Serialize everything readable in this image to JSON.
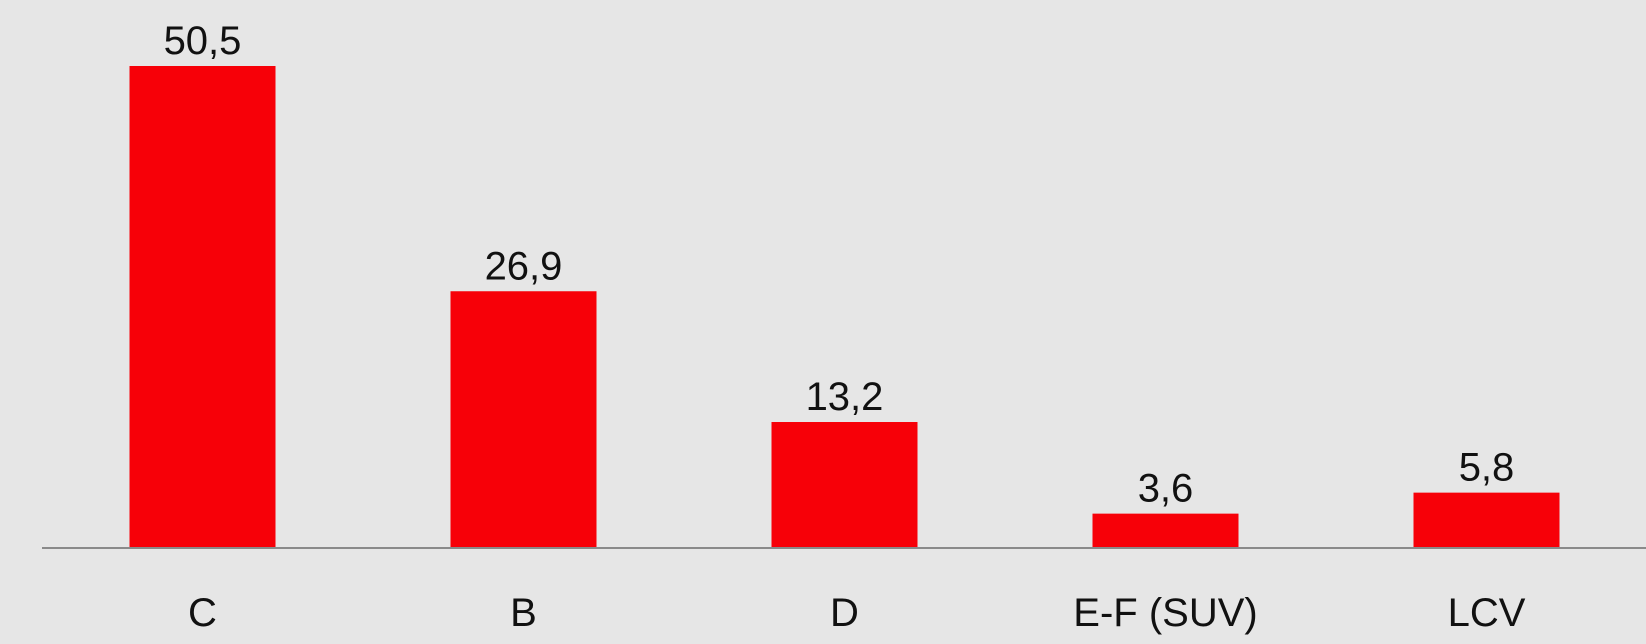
{
  "chart_data": {
    "type": "bar",
    "categories": [
      "C",
      "B",
      "D",
      "E-F (SUV)",
      "LCV"
    ],
    "values": [
      50.5,
      26.9,
      13.2,
      3.6,
      5.8
    ],
    "value_labels": [
      "50,5",
      "26,9",
      "13,2",
      "3,6",
      "5,8"
    ],
    "color": "#f70008"
  }
}
